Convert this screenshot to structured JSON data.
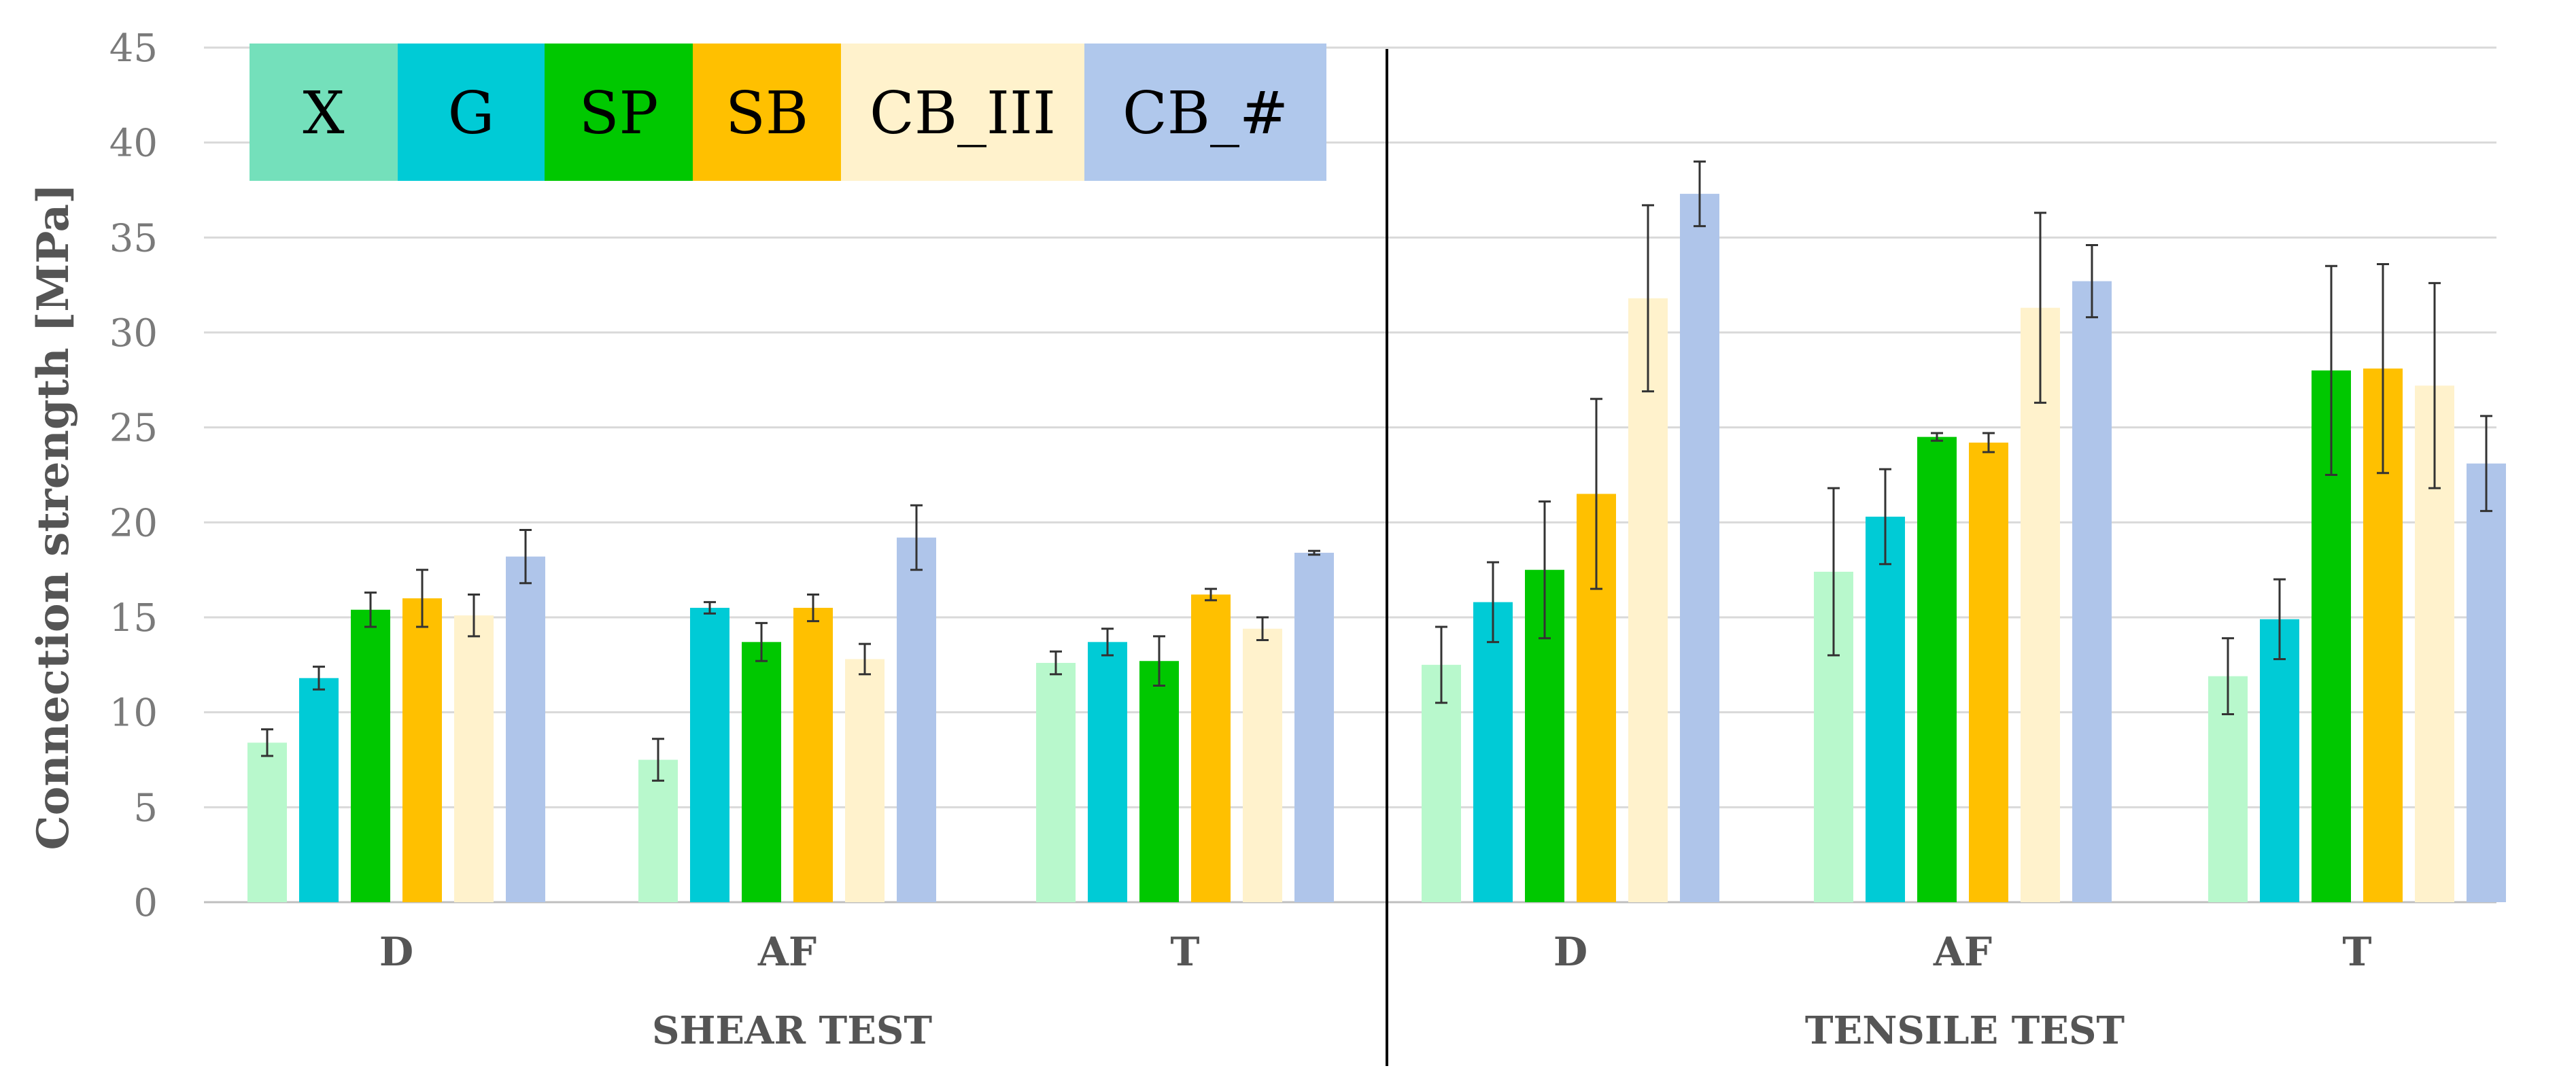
{
  "chart_data": {
    "type": "bar",
    "title": "",
    "ylabel": "Connection strength [MPa]",
    "xlabel": "",
    "ylim": [
      0,
      45
    ],
    "y_ticks": [
      0,
      5,
      10,
      15,
      20,
      25,
      30,
      35,
      40,
      45
    ],
    "grid": true,
    "legend_position": "top-left",
    "groups": [
      {
        "label": "SHEAR TEST",
        "categories": [
          "D",
          "AF",
          "T"
        ]
      },
      {
        "label": "TENSILE TEST",
        "categories": [
          "D",
          "AF",
          "T"
        ]
      }
    ],
    "categories": [
      "D",
      "AF",
      "T",
      "D",
      "AF",
      "T"
    ],
    "series": [
      {
        "name": "X",
        "legend_color": "#74e0bb",
        "bar_color": "#b8f8cc",
        "values": [
          8.4,
          7.5,
          12.6,
          12.5,
          17.4,
          11.9
        ],
        "errors": [
          0.7,
          1.1,
          0.6,
          2.0,
          4.4,
          2.0
        ]
      },
      {
        "name": "G",
        "legend_color": "#00cbd6",
        "bar_color": "#00cbd6",
        "values": [
          11.8,
          15.5,
          13.7,
          15.8,
          20.3,
          14.9
        ],
        "errors": [
          0.6,
          0.3,
          0.7,
          2.1,
          2.5,
          2.1
        ]
      },
      {
        "name": "SP",
        "legend_color": "#00c800",
        "bar_color": "#00c800",
        "values": [
          15.4,
          13.7,
          12.7,
          17.5,
          24.5,
          28.0
        ],
        "errors": [
          0.9,
          1.0,
          1.3,
          3.6,
          0.2,
          5.5
        ]
      },
      {
        "name": "SB",
        "legend_color": "#ffc000",
        "bar_color": "#ffc000",
        "values": [
          16.0,
          15.5,
          16.2,
          21.5,
          24.2,
          28.1
        ],
        "errors": [
          1.5,
          0.7,
          0.3,
          5.0,
          0.5,
          5.5
        ]
      },
      {
        "name": "CB_III",
        "legend_color": "#fff2cc",
        "bar_color": "#fff2cc",
        "values": [
          15.1,
          12.8,
          14.4,
          31.8,
          31.3,
          27.2
        ],
        "errors": [
          1.1,
          0.8,
          0.6,
          4.9,
          5.0,
          5.4
        ]
      },
      {
        "name": "CB_#",
        "legend_color": "#b0c8ec",
        "bar_color": "#afc5ea",
        "values": [
          18.2,
          19.2,
          18.4,
          37.3,
          32.7,
          23.1
        ],
        "errors": [
          1.4,
          1.7,
          0.1,
          1.7,
          1.9,
          2.5
        ]
      }
    ]
  }
}
